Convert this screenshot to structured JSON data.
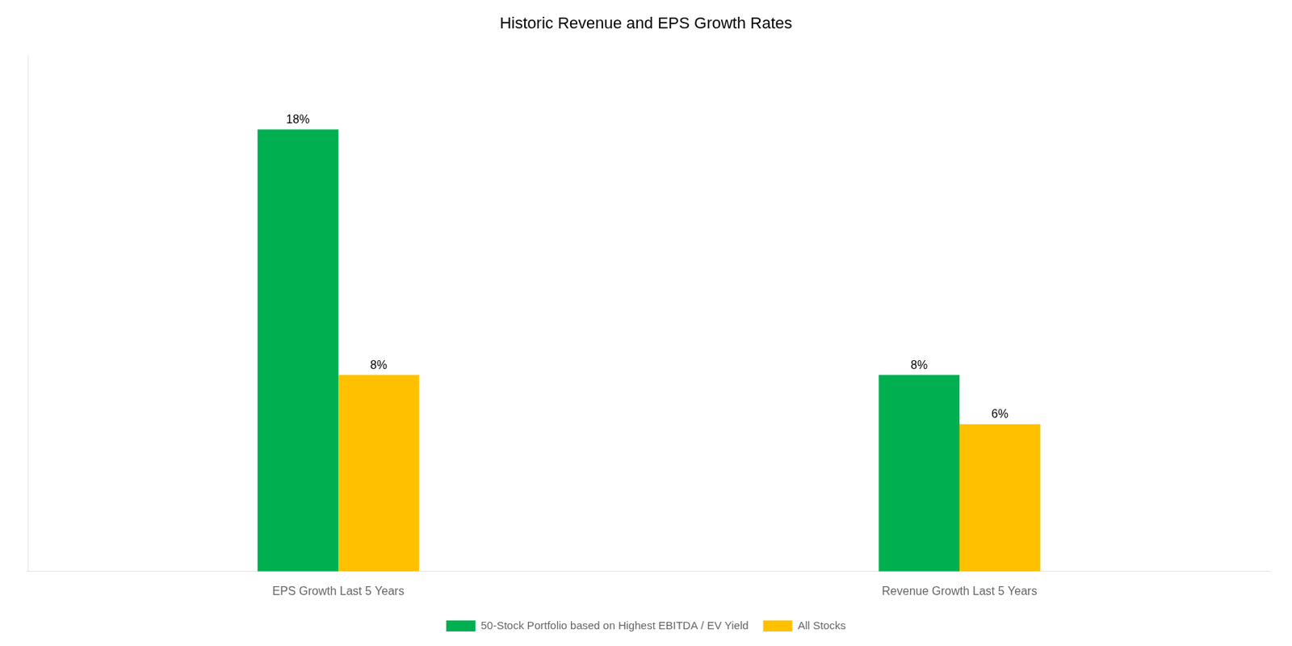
{
  "chart_data": {
    "type": "bar",
    "title": "Historic Revenue and EPS Growth Rates",
    "categories": [
      "EPS Growth Last 5 Years",
      "Revenue Growth Last 5 Years"
    ],
    "series": [
      {
        "name": "50-Stock Portfolio based on Highest EBITDA / EV Yield",
        "color": "#00B050",
        "values": [
          18,
          8
        ],
        "value_labels": [
          "18%",
          "8%"
        ]
      },
      {
        "name": "All Stocks",
        "color": "#FFC000",
        "values": [
          8,
          6
        ],
        "value_labels": [
          "8%",
          "6%"
        ]
      }
    ],
    "ylim": [
      0,
      21
    ],
    "grid": false,
    "legend": "bottom",
    "data_labels": true,
    "tick_labels": "x"
  }
}
